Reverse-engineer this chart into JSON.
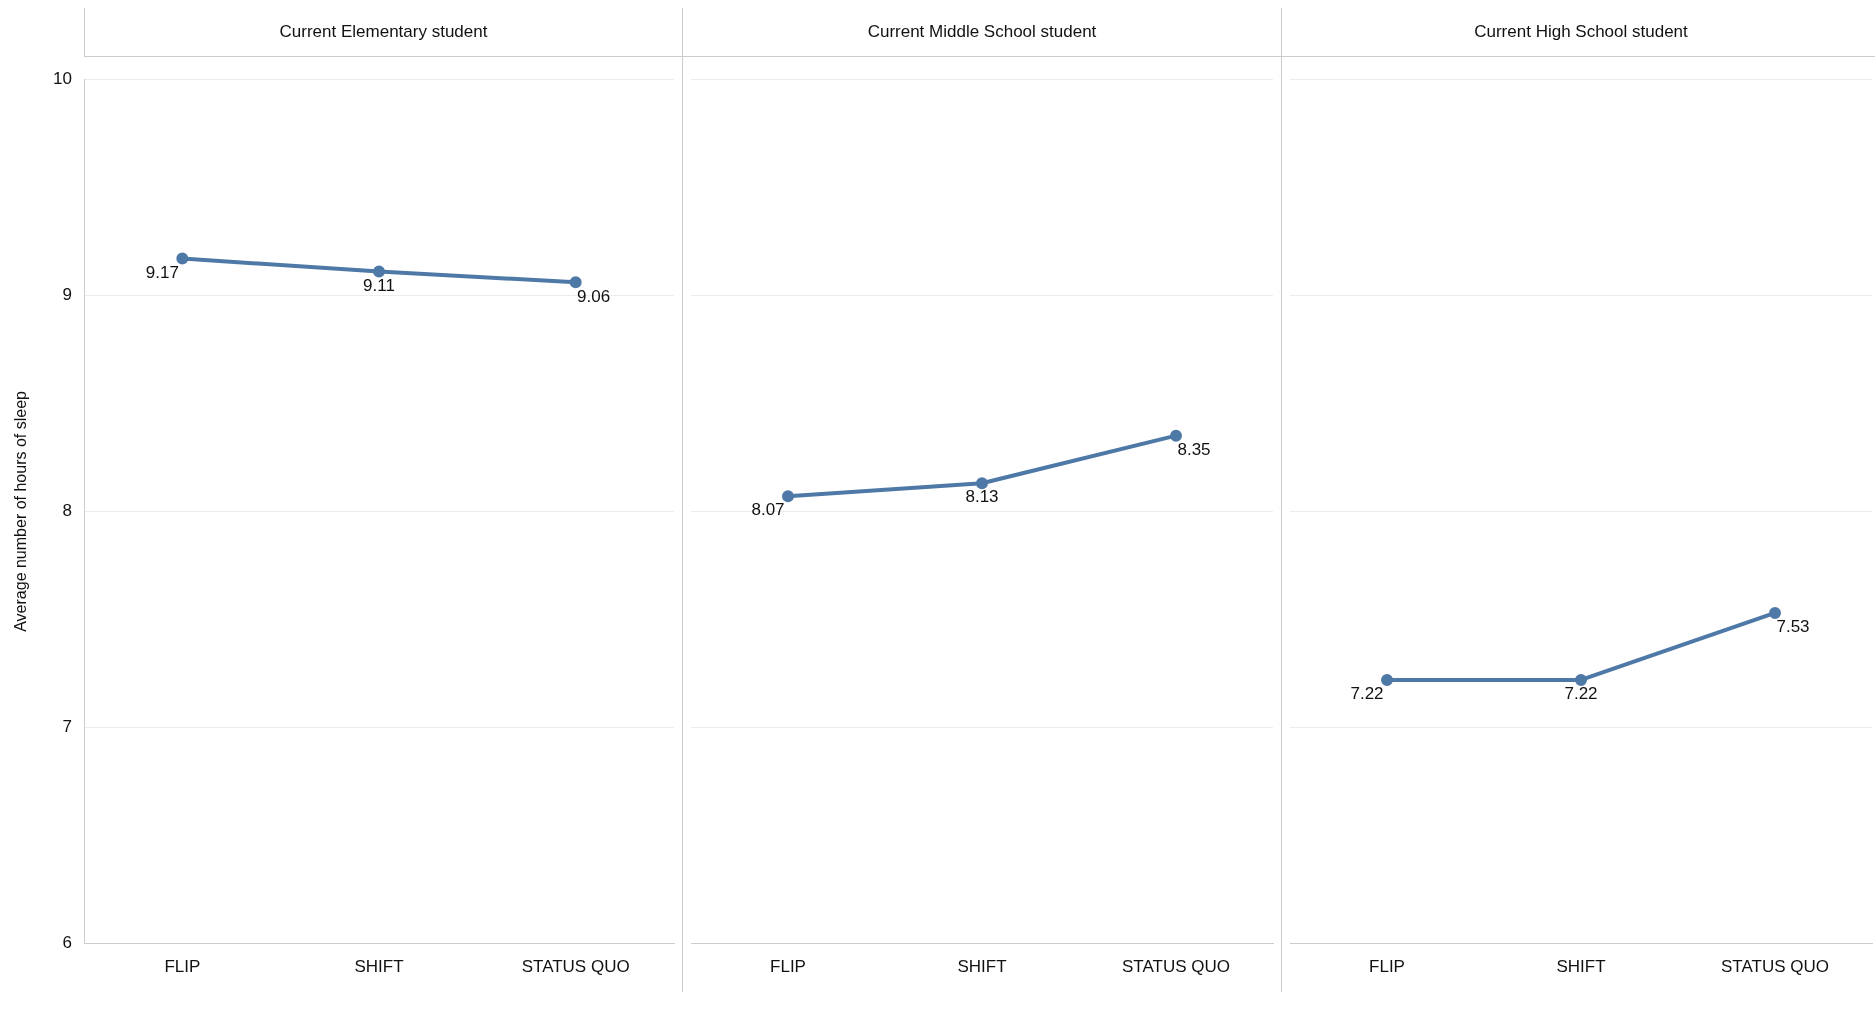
{
  "chart_data": [
    {
      "type": "line",
      "title": "Current Elementary student",
      "ylabel": "Average number of hours of sleep",
      "categories": [
        "FLIP",
        "SHIFT",
        "STATUS QUO"
      ],
      "values": [
        9.17,
        9.11,
        9.06
      ],
      "color": "#4e79a7",
      "marker": "circle",
      "data_labels": true,
      "grid": "y",
      "ylim": [
        6,
        10
      ],
      "yticks": [
        6,
        7,
        8,
        9,
        10
      ]
    },
    {
      "type": "line",
      "title": "Current Middle School student",
      "categories": [
        "FLIP",
        "SHIFT",
        "STATUS QUO"
      ],
      "values": [
        8.07,
        8.13,
        8.35
      ],
      "color": "#4e79a7",
      "marker": "circle",
      "data_labels": true,
      "grid": "y",
      "ylim": [
        6,
        10
      ],
      "yticks": [
        6,
        7,
        8,
        9,
        10
      ],
      "tick_labels": "x"
    },
    {
      "type": "line",
      "title": "Current High School student",
      "categories": [
        "FLIP",
        "SHIFT",
        "STATUS QUO"
      ],
      "values": [
        7.22,
        7.22,
        7.53
      ],
      "color": "#4e79a7",
      "marker": "circle",
      "data_labels": true,
      "grid": "y",
      "ylim": [
        6,
        10
      ],
      "yticks": [
        6,
        7,
        8,
        9,
        10
      ],
      "tick_labels": "x"
    }
  ]
}
